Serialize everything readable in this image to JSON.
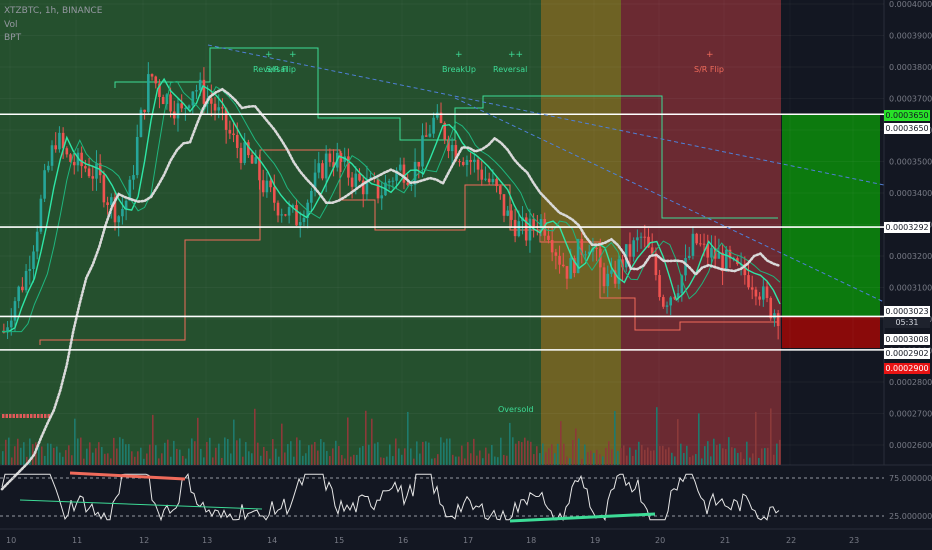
{
  "header": {
    "symbol": "XTZBTC, 1h, BINANCE",
    "vol": "Vol",
    "bpt": "BPT"
  },
  "colors": {
    "bull": "#26a69a",
    "bear": "#ef5350",
    "zone_green": "#26532f",
    "zone_yellow": "#6e6224",
    "zone_red": "#6b2a32",
    "bg": "#131722"
  },
  "chart_data": {
    "type": "candlestick",
    "title": "XTZBTC, 1h, BINANCE",
    "ylim": [
      0.000255,
      0.0004
    ],
    "yticks": [
      "0.0004000",
      "0.0003900",
      "0.0003800",
      "0.0003700",
      "0.0003600",
      "0.0003500",
      "0.0003400",
      "0.0003300",
      "0.0003200",
      "0.0003100",
      "0.0003000",
      "0.0002900",
      "0.0002800",
      "0.0002700",
      "0.0002600"
    ],
    "xticks": [
      "10",
      "11",
      "12",
      "13",
      "14",
      "15",
      "16",
      "17",
      "18",
      "19",
      "20",
      "21",
      "22",
      "23"
    ],
    "horizontal_levels": [
      0.000365,
      0.0003292,
      0.0003008,
      0.0002902
    ],
    "price_tags": [
      {
        "value": "0.0003650",
        "style": "green"
      },
      {
        "value": "0.0003650",
        "style": "white"
      },
      {
        "value": "0.0003292",
        "style": "white"
      },
      {
        "value": "0.0003023",
        "style": "white"
      },
      {
        "value": "05:31",
        "style": "dark"
      },
      {
        "value": "0.0003008",
        "style": "white"
      },
      {
        "value": "0.0002902",
        "style": "white"
      },
      {
        "value": "0.0002900",
        "style": "red"
      }
    ],
    "close_series": [
      0.000296,
      0.000306,
      0.000313,
      0.000327,
      0.000345,
      0.000358,
      0.000351,
      0.000349,
      0.000348,
      0.000345,
      0.000338,
      0.000333,
      0.00034,
      0.000362,
      0.000378,
      0.000372,
      0.000369,
      0.000365,
      0.000374,
      0.000372,
      0.000368,
      0.000362,
      0.000356,
      0.000352,
      0.000348,
      0.000341,
      0.000337,
      0.000334,
      0.000332,
      0.000338,
      0.000345,
      0.000352,
      0.00035,
      0.000346,
      0.000343,
      0.000342,
      0.00034,
      0.000345,
      0.000348,
      0.000346,
      0.000354,
      0.000363,
      0.00036,
      0.000354,
      0.000352,
      0.000349,
      0.000345,
      0.000341,
      0.000333,
      0.00033,
      0.000327,
      0.000332,
      0.000329,
      0.00032,
      0.000315,
      0.000322,
      0.000325,
      0.000315,
      0.000311,
      0.000318,
      0.000322,
      0.000326,
      0.000318,
      0.000306,
      0.000309,
      0.000315,
      0.000325,
      0.000321,
      0.00032,
      0.000318,
      0.000315,
      0.000314,
      0.000311,
      0.000304,
      0.000302
    ],
    "annotations": [
      "Reversal",
      "S/R Flip",
      "BreakUp",
      "Reversal",
      "S/R Flip",
      "Oversold"
    ],
    "rsi": {
      "yticks": [
        "75.0000000",
        "25.0000000"
      ],
      "levels": [
        75,
        25
      ]
    }
  }
}
